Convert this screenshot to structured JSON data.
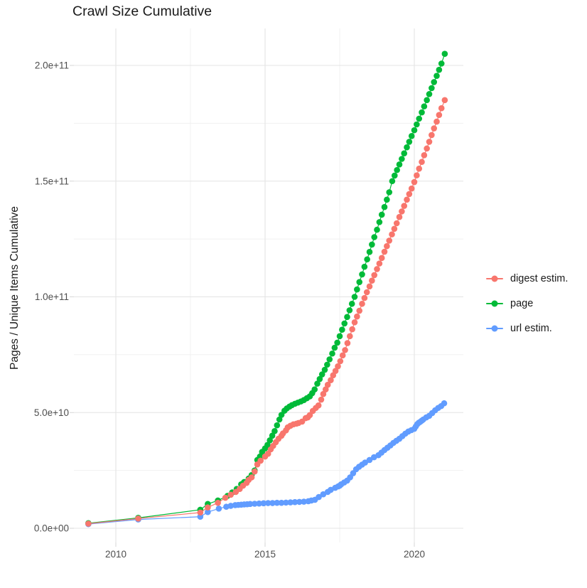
{
  "chart_data": {
    "type": "scatter",
    "title": "Crawl Size Cumulative",
    "xlabel": "",
    "ylabel": "Pages / Unique Items Cumulative",
    "grid": true,
    "background": "#ffffff",
    "grid_major_color": "#e4e4e4",
    "grid_minor_color": "#f0f0f0",
    "axis_text_color": "#4d4d4d",
    "legend_position": "right",
    "value_unit": "1e9",
    "x_range": [
      2008.6,
      2021.65
    ],
    "y_range_e9": [
      -6,
      216
    ],
    "x_ticks": [
      {
        "v": 2010,
        "label": "2010"
      },
      {
        "v": 2015,
        "label": "2015"
      },
      {
        "v": 2020,
        "label": "2020"
      }
    ],
    "x_minor_ticks": [
      2012.5,
      2017.5
    ],
    "y_ticks": [
      {
        "v": 0,
        "label": "0.0e+00"
      },
      {
        "v": 50,
        "label": "5.0e+10"
      },
      {
        "v": 100,
        "label": "1.0e+11"
      },
      {
        "v": 150,
        "label": "1.5e+11"
      },
      {
        "v": 200,
        "label": "2.0e+11"
      }
    ],
    "y_minor_ticks": [
      25,
      75,
      125,
      175
    ],
    "series": [
      {
        "name": "digest estim.",
        "color": "#F8766D",
        "points": [
          [
            2009.08,
            2.0
          ],
          [
            2010.75,
            4.2
          ],
          [
            2012.83,
            6.8
          ],
          [
            2013.08,
            9.0
          ],
          [
            2013.42,
            11.0
          ],
          [
            2013.67,
            13.2
          ],
          [
            2013.85,
            14.5
          ],
          [
            2014.02,
            15.7
          ],
          [
            2014.15,
            17.0
          ],
          [
            2014.26,
            18.4
          ],
          [
            2014.38,
            19.6
          ],
          [
            2014.45,
            20.9
          ],
          [
            2014.55,
            22.0
          ],
          [
            2014.65,
            24.5
          ],
          [
            2014.74,
            27.6
          ],
          [
            2014.85,
            29.2
          ],
          [
            2015.0,
            31.0
          ],
          [
            2015.1,
            32.2
          ],
          [
            2015.19,
            34.1
          ],
          [
            2015.27,
            35.6
          ],
          [
            2015.36,
            37.2
          ],
          [
            2015.45,
            38.7
          ],
          [
            2015.55,
            40.0
          ],
          [
            2015.6,
            41.0
          ],
          [
            2015.7,
            42.3
          ],
          [
            2015.76,
            43.6
          ],
          [
            2015.85,
            44.3
          ],
          [
            2015.95,
            44.9
          ],
          [
            2016.05,
            45.2
          ],
          [
            2016.12,
            45.5
          ],
          [
            2016.24,
            46.1
          ],
          [
            2016.36,
            47.6
          ],
          [
            2016.43,
            47.9
          ],
          [
            2016.5,
            48.9
          ],
          [
            2016.6,
            50.7
          ],
          [
            2016.7,
            52.0
          ],
          [
            2016.79,
            53.1
          ],
          [
            2016.88,
            55.6
          ],
          [
            2016.95,
            58.0
          ],
          [
            2017.03,
            60.0
          ],
          [
            2017.1,
            62.0
          ],
          [
            2017.2,
            64.0
          ],
          [
            2017.28,
            66.1
          ],
          [
            2017.36,
            68.0
          ],
          [
            2017.44,
            70.0
          ],
          [
            2017.52,
            72.2
          ],
          [
            2017.6,
            74.7
          ],
          [
            2017.68,
            77.0
          ],
          [
            2017.76,
            80.0
          ],
          [
            2017.84,
            83.0
          ],
          [
            2017.92,
            86.0
          ],
          [
            2018.0,
            89.0
          ],
          [
            2018.08,
            91.5
          ],
          [
            2018.16,
            94.0
          ],
          [
            2018.25,
            97.0
          ],
          [
            2018.33,
            99.5
          ],
          [
            2018.41,
            102.0
          ],
          [
            2018.5,
            104.5
          ],
          [
            2018.58,
            107.0
          ],
          [
            2018.66,
            109.4
          ],
          [
            2018.75,
            112.0
          ],
          [
            2018.83,
            114.4
          ],
          [
            2018.91,
            116.8
          ],
          [
            2019.0,
            119.5
          ],
          [
            2019.08,
            121.9
          ],
          [
            2019.16,
            124.3
          ],
          [
            2019.25,
            127.0
          ],
          [
            2019.33,
            129.4
          ],
          [
            2019.41,
            131.8
          ],
          [
            2019.5,
            134.5
          ],
          [
            2019.58,
            136.9
          ],
          [
            2019.66,
            139.3
          ],
          [
            2019.75,
            142.0
          ],
          [
            2019.83,
            144.4
          ],
          [
            2019.91,
            146.8
          ],
          [
            2020.0,
            149.6
          ],
          [
            2020.08,
            152.5
          ],
          [
            2020.16,
            155.4
          ],
          [
            2020.25,
            158.3
          ],
          [
            2020.33,
            161.2
          ],
          [
            2020.42,
            164.1
          ],
          [
            2020.5,
            167.0
          ],
          [
            2020.58,
            169.9
          ],
          [
            2020.66,
            172.8
          ],
          [
            2020.75,
            175.7
          ],
          [
            2020.83,
            178.6
          ],
          [
            2020.91,
            181.5
          ],
          [
            2021.02,
            185.0
          ]
        ]
      },
      {
        "name": "page",
        "color": "#00BA38",
        "points": [
          [
            2009.08,
            2.2
          ],
          [
            2010.75,
            4.5
          ],
          [
            2012.83,
            8.0
          ],
          [
            2013.08,
            10.5
          ],
          [
            2013.42,
            12.0
          ],
          [
            2013.74,
            14.0
          ],
          [
            2013.9,
            15.5
          ],
          [
            2014.05,
            17.0
          ],
          [
            2014.2,
            19.0
          ],
          [
            2014.3,
            20.0
          ],
          [
            2014.45,
            21.5
          ],
          [
            2014.55,
            23.0
          ],
          [
            2014.65,
            25.0
          ],
          [
            2014.74,
            29.5
          ],
          [
            2014.83,
            31.0
          ],
          [
            2014.9,
            33.0
          ],
          [
            2015.0,
            34.5
          ],
          [
            2015.08,
            36.0
          ],
          [
            2015.16,
            38.0
          ],
          [
            2015.24,
            40.0
          ],
          [
            2015.32,
            42.0
          ],
          [
            2015.4,
            44.5
          ],
          [
            2015.48,
            47.0
          ],
          [
            2015.55,
            49.0
          ],
          [
            2015.65,
            50.8
          ],
          [
            2015.73,
            51.8
          ],
          [
            2015.82,
            52.6
          ],
          [
            2015.9,
            53.2
          ],
          [
            2016.0,
            53.8
          ],
          [
            2016.1,
            54.3
          ],
          [
            2016.2,
            54.8
          ],
          [
            2016.3,
            55.4
          ],
          [
            2016.4,
            56.2
          ],
          [
            2016.5,
            57.0
          ],
          [
            2016.58,
            58.4
          ],
          [
            2016.66,
            60.0
          ],
          [
            2016.75,
            62.5
          ],
          [
            2016.83,
            64.5
          ],
          [
            2016.91,
            66.5
          ],
          [
            2017.0,
            68.5
          ],
          [
            2017.08,
            70.7
          ],
          [
            2017.16,
            73.0
          ],
          [
            2017.25,
            75.5
          ],
          [
            2017.33,
            78.0
          ],
          [
            2017.42,
            80.2
          ],
          [
            2017.5,
            83.0
          ],
          [
            2017.58,
            85.8
          ],
          [
            2017.66,
            88.5
          ],
          [
            2017.75,
            91.3
          ],
          [
            2017.83,
            94.2
          ],
          [
            2017.91,
            97.0
          ],
          [
            2018.0,
            100.0
          ],
          [
            2018.08,
            103.2
          ],
          [
            2018.16,
            106.4
          ],
          [
            2018.25,
            109.7
          ],
          [
            2018.33,
            113.0
          ],
          [
            2018.42,
            116.2
          ],
          [
            2018.5,
            119.4
          ],
          [
            2018.58,
            122.6
          ],
          [
            2018.66,
            125.8
          ],
          [
            2018.75,
            129.0
          ],
          [
            2018.83,
            132.3
          ],
          [
            2018.91,
            135.5
          ],
          [
            2019.0,
            138.8
          ],
          [
            2019.08,
            142.0
          ],
          [
            2019.16,
            145.2
          ],
          [
            2019.26,
            150.0
          ],
          [
            2019.34,
            152.4
          ],
          [
            2019.42,
            154.8
          ],
          [
            2019.5,
            157.2
          ],
          [
            2019.58,
            159.6
          ],
          [
            2019.66,
            162.0
          ],
          [
            2019.75,
            164.6
          ],
          [
            2019.83,
            167.0
          ],
          [
            2019.91,
            169.5
          ],
          [
            2020.0,
            172.0
          ],
          [
            2020.08,
            174.5
          ],
          [
            2020.16,
            177.0
          ],
          [
            2020.25,
            179.7
          ],
          [
            2020.33,
            182.3
          ],
          [
            2020.42,
            185.0
          ],
          [
            2020.5,
            187.6
          ],
          [
            2020.58,
            190.2
          ],
          [
            2020.66,
            192.8
          ],
          [
            2020.75,
            195.5
          ],
          [
            2020.83,
            198.1
          ],
          [
            2020.91,
            200.8
          ],
          [
            2021.02,
            205.0
          ]
        ]
      },
      {
        "name": "url estim.",
        "color": "#619CFF",
        "points": [
          [
            2009.08,
            1.8
          ],
          [
            2010.75,
            3.8
          ],
          [
            2012.83,
            5.0
          ],
          [
            2013.08,
            7.0
          ],
          [
            2013.45,
            8.5
          ],
          [
            2013.7,
            9.3
          ],
          [
            2013.85,
            9.7
          ],
          [
            2014.0,
            10.0
          ],
          [
            2014.1,
            10.1
          ],
          [
            2014.2,
            10.2
          ],
          [
            2014.3,
            10.3
          ],
          [
            2014.4,
            10.4
          ],
          [
            2014.5,
            10.5
          ],
          [
            2014.65,
            10.6
          ],
          [
            2014.8,
            10.7
          ],
          [
            2014.95,
            10.8
          ],
          [
            2015.1,
            10.9
          ],
          [
            2015.25,
            10.9
          ],
          [
            2015.4,
            11.0
          ],
          [
            2015.55,
            11.0
          ],
          [
            2015.7,
            11.1
          ],
          [
            2015.85,
            11.2
          ],
          [
            2016.0,
            11.3
          ],
          [
            2016.15,
            11.4
          ],
          [
            2016.3,
            11.5
          ],
          [
            2016.45,
            11.7
          ],
          [
            2016.55,
            12.0
          ],
          [
            2016.67,
            12.3
          ],
          [
            2016.8,
            13.5
          ],
          [
            2016.95,
            14.7
          ],
          [
            2017.1,
            15.7
          ],
          [
            2017.2,
            16.6
          ],
          [
            2017.35,
            17.5
          ],
          [
            2017.45,
            18.1
          ],
          [
            2017.5,
            18.4
          ],
          [
            2017.55,
            19.0
          ],
          [
            2017.65,
            19.8
          ],
          [
            2017.75,
            20.6
          ],
          [
            2017.85,
            22.0
          ],
          [
            2017.95,
            23.8
          ],
          [
            2018.05,
            25.5
          ],
          [
            2018.15,
            26.6
          ],
          [
            2018.25,
            27.5
          ],
          [
            2018.35,
            28.4
          ],
          [
            2018.5,
            29.5
          ],
          [
            2018.65,
            30.7
          ],
          [
            2018.8,
            31.6
          ],
          [
            2018.9,
            32.7
          ],
          [
            2019.0,
            33.8
          ],
          [
            2019.1,
            34.8
          ],
          [
            2019.2,
            35.8
          ],
          [
            2019.3,
            36.9
          ],
          [
            2019.4,
            37.8
          ],
          [
            2019.5,
            38.7
          ],
          [
            2019.6,
            39.8
          ],
          [
            2019.7,
            40.9
          ],
          [
            2019.8,
            41.8
          ],
          [
            2019.9,
            42.4
          ],
          [
            2020.0,
            43.0
          ],
          [
            2020.05,
            44.0
          ],
          [
            2020.1,
            45.0
          ],
          [
            2020.15,
            45.6
          ],
          [
            2020.2,
            46.0
          ],
          [
            2020.25,
            46.5
          ],
          [
            2020.3,
            47.0
          ],
          [
            2020.4,
            47.9
          ],
          [
            2020.5,
            48.6
          ],
          [
            2020.6,
            49.8
          ],
          [
            2020.7,
            51.0
          ],
          [
            2020.8,
            52.0
          ],
          [
            2020.9,
            52.8
          ],
          [
            2021.0,
            54.0
          ]
        ]
      }
    ]
  }
}
